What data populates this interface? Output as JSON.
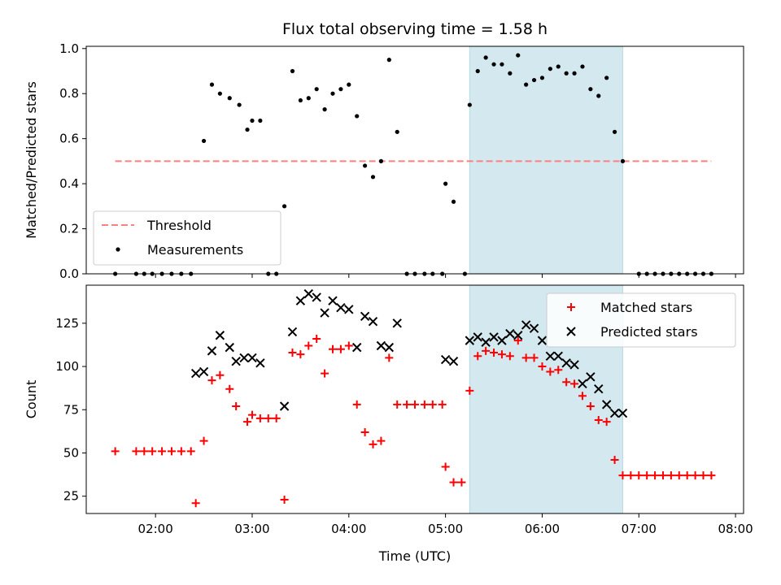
{
  "chart_data": {
    "type": "scatter",
    "title": "Flux total observing time = 1.58 h",
    "xlabel": "Time (UTC)",
    "x_ticks": [
      "02:00",
      "03:00",
      "04:00",
      "05:00",
      "06:00",
      "07:00",
      "08:00"
    ],
    "xlim": [
      "01:17",
      "08:05"
    ],
    "shaded_interval": [
      "05:15",
      "06:50"
    ],
    "shade_color": "#d3e9ef",
    "panels": [
      {
        "id": "ratio",
        "ylabel": "Matched/Predicted stars",
        "ylim": [
          0,
          1.01
        ],
        "y_ticks": [
          "0.0",
          "0.2",
          "0.4",
          "0.6",
          "0.8",
          "1.0"
        ],
        "legend": {
          "position": "lower-left",
          "entries": [
            "Threshold",
            "Measurements"
          ]
        },
        "threshold": {
          "name": "Threshold",
          "y": 0.5,
          "x_range": [
            "01:35",
            "07:45"
          ],
          "color": "#ff7f7f"
        },
        "series": [
          {
            "name": "Measurements",
            "marker": "dot",
            "color": "#000000",
            "points": [
              [
                "01:35",
                0.0
              ],
              [
                "01:48",
                0.0
              ],
              [
                "01:53",
                0.0
              ],
              [
                "01:58",
                0.0
              ],
              [
                "02:04",
                0.0
              ],
              [
                "02:10",
                0.0
              ],
              [
                "02:16",
                0.0
              ],
              [
                "02:22",
                0.0
              ],
              [
                "02:30",
                0.59
              ],
              [
                "02:35",
                0.84
              ],
              [
                "02:40",
                0.8
              ],
              [
                "02:46",
                0.78
              ],
              [
                "02:52",
                0.75
              ],
              [
                "02:57",
                0.64
              ],
              [
                "03:00",
                0.68
              ],
              [
                "03:05",
                0.68
              ],
              [
                "03:10",
                0.0
              ],
              [
                "03:15",
                0.0
              ],
              [
                "03:20",
                0.3
              ],
              [
                "03:25",
                0.9
              ],
              [
                "03:30",
                0.77
              ],
              [
                "03:35",
                0.78
              ],
              [
                "03:40",
                0.82
              ],
              [
                "03:45",
                0.73
              ],
              [
                "03:50",
                0.8
              ],
              [
                "03:55",
                0.82
              ],
              [
                "04:00",
                0.84
              ],
              [
                "04:05",
                0.7
              ],
              [
                "04:10",
                0.48
              ],
              [
                "04:15",
                0.43
              ],
              [
                "04:20",
                0.5
              ],
              [
                "04:25",
                0.95
              ],
              [
                "04:30",
                0.63
              ],
              [
                "04:36",
                0.0
              ],
              [
                "04:41",
                0.0
              ],
              [
                "04:47",
                0.0
              ],
              [
                "04:52",
                0.0
              ],
              [
                "04:58",
                0.0
              ],
              [
                "05:00",
                0.4
              ],
              [
                "05:05",
                0.32
              ],
              [
                "05:12",
                0.0
              ],
              [
                "05:15",
                0.75
              ],
              [
                "05:20",
                0.9
              ],
              [
                "05:25",
                0.96
              ],
              [
                "05:30",
                0.93
              ],
              [
                "05:35",
                0.93
              ],
              [
                "05:40",
                0.89
              ],
              [
                "05:45",
                0.97
              ],
              [
                "05:50",
                0.84
              ],
              [
                "05:55",
                0.86
              ],
              [
                "06:00",
                0.87
              ],
              [
                "06:05",
                0.91
              ],
              [
                "06:10",
                0.92
              ],
              [
                "06:15",
                0.89
              ],
              [
                "06:20",
                0.89
              ],
              [
                "06:25",
                0.92
              ],
              [
                "06:30",
                0.82
              ],
              [
                "06:35",
                0.79
              ],
              [
                "06:40",
                0.87
              ],
              [
                "06:45",
                0.63
              ],
              [
                "06:50",
                0.5
              ],
              [
                "07:00",
                0.0
              ],
              [
                "07:05",
                0.0
              ],
              [
                "07:10",
                0.0
              ],
              [
                "07:15",
                0.0
              ],
              [
                "07:20",
                0.0
              ],
              [
                "07:25",
                0.0
              ],
              [
                "07:30",
                0.0
              ],
              [
                "07:35",
                0.0
              ],
              [
                "07:40",
                0.0
              ],
              [
                "07:45",
                0.0
              ]
            ]
          }
        ]
      },
      {
        "id": "count",
        "ylabel": "Count",
        "ylim": [
          15,
          147
        ],
        "y_ticks": [
          "25",
          "50",
          "75",
          "100",
          "125"
        ],
        "legend": {
          "position": "upper-right",
          "entries": [
            "Matched stars",
            "Predicted stars"
          ]
        },
        "series": [
          {
            "name": "Matched stars",
            "marker": "plus",
            "color": "#ff0000",
            "points": [
              [
                "01:35",
                51
              ],
              [
                "01:48",
                51
              ],
              [
                "01:53",
                51
              ],
              [
                "01:58",
                51
              ],
              [
                "02:04",
                51
              ],
              [
                "02:10",
                51
              ],
              [
                "02:16",
                51
              ],
              [
                "02:22",
                51
              ],
              [
                "02:25",
                21
              ],
              [
                "02:30",
                57
              ],
              [
                "02:35",
                92
              ],
              [
                "02:40",
                95
              ],
              [
                "02:46",
                87
              ],
              [
                "02:50",
                77
              ],
              [
                "02:57",
                68
              ],
              [
                "03:00",
                72
              ],
              [
                "03:05",
                70
              ],
              [
                "03:10",
                70
              ],
              [
                "03:15",
                70
              ],
              [
                "03:20",
                23
              ],
              [
                "03:25",
                108
              ],
              [
                "03:30",
                107
              ],
              [
                "03:35",
                112
              ],
              [
                "03:40",
                116
              ],
              [
                "03:45",
                96
              ],
              [
                "03:50",
                110
              ],
              [
                "03:55",
                110
              ],
              [
                "04:00",
                112
              ],
              [
                "04:05",
                78
              ],
              [
                "04:10",
                62
              ],
              [
                "04:15",
                55
              ],
              [
                "04:20",
                57
              ],
              [
                "04:25",
                105
              ],
              [
                "04:30",
                78
              ],
              [
                "04:36",
                78
              ],
              [
                "04:41",
                78
              ],
              [
                "04:47",
                78
              ],
              [
                "04:52",
                78
              ],
              [
                "04:58",
                78
              ],
              [
                "05:00",
                42
              ],
              [
                "05:05",
                33
              ],
              [
                "05:10",
                33
              ],
              [
                "05:15",
                86
              ],
              [
                "05:20",
                106
              ],
              [
                "05:25",
                109
              ],
              [
                "05:30",
                108
              ],
              [
                "05:35",
                107
              ],
              [
                "05:40",
                106
              ],
              [
                "05:45",
                115
              ],
              [
                "05:50",
                105
              ],
              [
                "05:55",
                105
              ],
              [
                "06:00",
                100
              ],
              [
                "06:05",
                97
              ],
              [
                "06:10",
                98
              ],
              [
                "06:15",
                91
              ],
              [
                "06:20",
                90
              ],
              [
                "06:25",
                83
              ],
              [
                "06:30",
                77
              ],
              [
                "06:35",
                69
              ],
              [
                "06:40",
                68
              ],
              [
                "06:45",
                46
              ],
              [
                "06:50",
                37
              ],
              [
                "06:55",
                37
              ],
              [
                "07:00",
                37
              ],
              [
                "07:05",
                37
              ],
              [
                "07:10",
                37
              ],
              [
                "07:15",
                37
              ],
              [
                "07:20",
                37
              ],
              [
                "07:25",
                37
              ],
              [
                "07:30",
                37
              ],
              [
                "07:35",
                37
              ],
              [
                "07:40",
                37
              ],
              [
                "07:45",
                37
              ]
            ]
          },
          {
            "name": "Predicted stars",
            "marker": "x",
            "color": "#000000",
            "points": [
              [
                "02:25",
                96
              ],
              [
                "02:30",
                97
              ],
              [
                "02:35",
                109
              ],
              [
                "02:40",
                118
              ],
              [
                "02:46",
                111
              ],
              [
                "02:50",
                103
              ],
              [
                "02:55",
                105
              ],
              [
                "03:00",
                105
              ],
              [
                "03:05",
                102
              ],
              [
                "03:20",
                77
              ],
              [
                "03:25",
                120
              ],
              [
                "03:30",
                138
              ],
              [
                "03:35",
                142
              ],
              [
                "03:40",
                140
              ],
              [
                "03:45",
                131
              ],
              [
                "03:50",
                138
              ],
              [
                "03:55",
                134
              ],
              [
                "04:00",
                133
              ],
              [
                "04:05",
                111
              ],
              [
                "04:10",
                129
              ],
              [
                "04:15",
                126
              ],
              [
                "04:20",
                112
              ],
              [
                "04:25",
                111
              ],
              [
                "04:30",
                125
              ],
              [
                "05:00",
                104
              ],
              [
                "05:05",
                103
              ],
              [
                "05:15",
                115
              ],
              [
                "05:20",
                117
              ],
              [
                "05:25",
                114
              ],
              [
                "05:30",
                117
              ],
              [
                "05:35",
                115
              ],
              [
                "05:40",
                119
              ],
              [
                "05:45",
                118
              ],
              [
                "05:50",
                124
              ],
              [
                "05:55",
                122
              ],
              [
                "06:00",
                115
              ],
              [
                "06:05",
                106
              ],
              [
                "06:10",
                106
              ],
              [
                "06:15",
                102
              ],
              [
                "06:20",
                101
              ],
              [
                "06:25",
                90
              ],
              [
                "06:30",
                94
              ],
              [
                "06:35",
                87
              ],
              [
                "06:40",
                78
              ],
              [
                "06:45",
                73
              ],
              [
                "06:50",
                73
              ]
            ]
          }
        ]
      }
    ]
  }
}
